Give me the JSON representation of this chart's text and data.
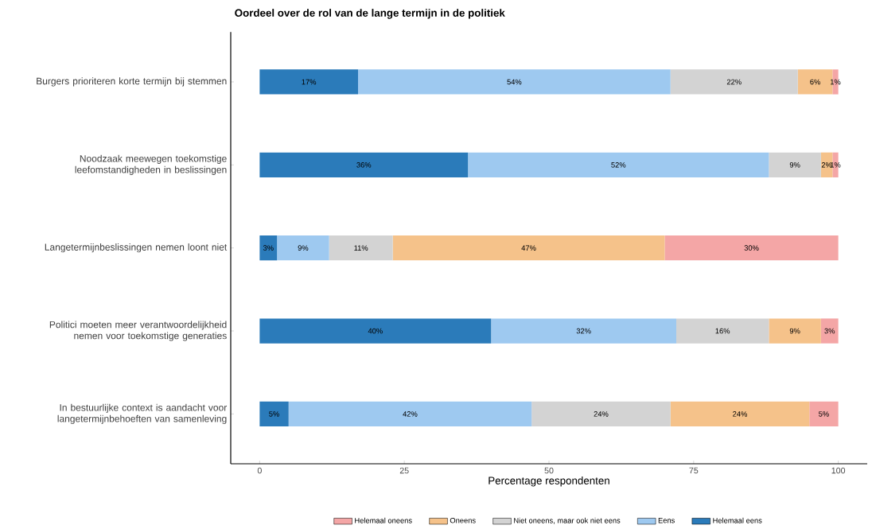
{
  "chart_data": {
    "type": "bar",
    "orientation": "horizontal",
    "stacked": true,
    "title": "Oordeel over de rol van de lange termijn in de politiek",
    "xlabel": "Percentage respondenten",
    "categories": [
      "Burgers prioriteren korte termijn bij stemmen",
      "Noodzaak meewegen toekomstige leefomstandigheden in beslissingen",
      "Langetermijnbeslissingen nemen loont niet",
      "Politici moeten meer verantwoordelijkheid nemen voor toekomstige generaties",
      "In bestuurlijke context is aandacht voor langetermijnbehoeften van samenleving"
    ],
    "series": [
      {
        "name": "Helemaal eens",
        "color": "#2b7bba",
        "values": [
          17,
          36,
          3,
          40,
          5
        ],
        "value_labels": [
          "17%",
          "36%",
          "3%",
          "40%",
          "5%"
        ]
      },
      {
        "name": "Eens",
        "color": "#9ec9f0",
        "values": [
          54,
          52,
          9,
          32,
          42
        ],
        "value_labels": [
          "54%",
          "52%",
          "9%",
          "32%",
          "42%"
        ]
      },
      {
        "name": "Niet oneens, maar ook niet eens",
        "color": "#d3d3d3",
        "values": [
          22,
          9,
          11,
          16,
          24
        ],
        "value_labels": [
          "22%",
          "9%",
          "11%",
          "16%",
          "24%"
        ]
      },
      {
        "name": "Oneens",
        "color": "#f5c28a",
        "values": [
          6,
          2,
          47,
          9,
          24
        ],
        "value_labels": [
          "6%",
          "2%",
          "47%",
          "9%",
          "24%"
        ]
      },
      {
        "name": "Helemaal oneens",
        "color": "#f4a6a6",
        "values": [
          1,
          1,
          30,
          3,
          5
        ],
        "value_labels": [
          "1%",
          "1%",
          "30%",
          "3%",
          "5%"
        ]
      }
    ],
    "xlim": [
      -5,
      105
    ],
    "xticks": [
      0,
      25,
      50,
      75,
      100
    ],
    "grid": false,
    "legend": "bottom"
  }
}
